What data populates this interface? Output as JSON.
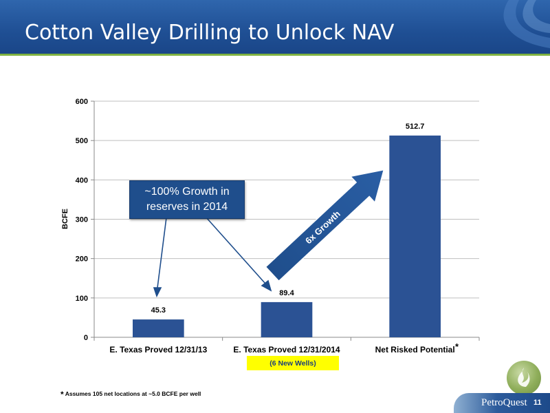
{
  "slide": {
    "title": "Cotton Valley Drilling to Unlock NAV",
    "brand": "PetroQuest",
    "page_number": "11",
    "footnote_star": "*",
    "footnote_text": "Assumes 105 net locations at ~5.0 BCFE per well",
    "accent_color": "#7fb241",
    "header_color": "#1f4f94"
  },
  "annotations": {
    "callout": "~100% Growth in reserves in 2014",
    "growth_arrow": "6x Growth",
    "wells_note": "(6 New Wells)",
    "category_star": "*"
  },
  "chart_data": {
    "type": "bar",
    "categories": [
      "E. Texas Proved 12/31/13",
      "E. Texas Proved 12/31/2014",
      "Net Risked Potential"
    ],
    "values": [
      45.3,
      89.4,
      512.7
    ],
    "value_labels": [
      "45.3",
      "89.4",
      "512.7"
    ],
    "ylabel": "BCFE",
    "ylim": [
      0,
      600
    ],
    "yticks": [
      0,
      100,
      200,
      300,
      400,
      500,
      600
    ],
    "grid": true,
    "legend": "none",
    "bar_color": "#2b5294"
  }
}
